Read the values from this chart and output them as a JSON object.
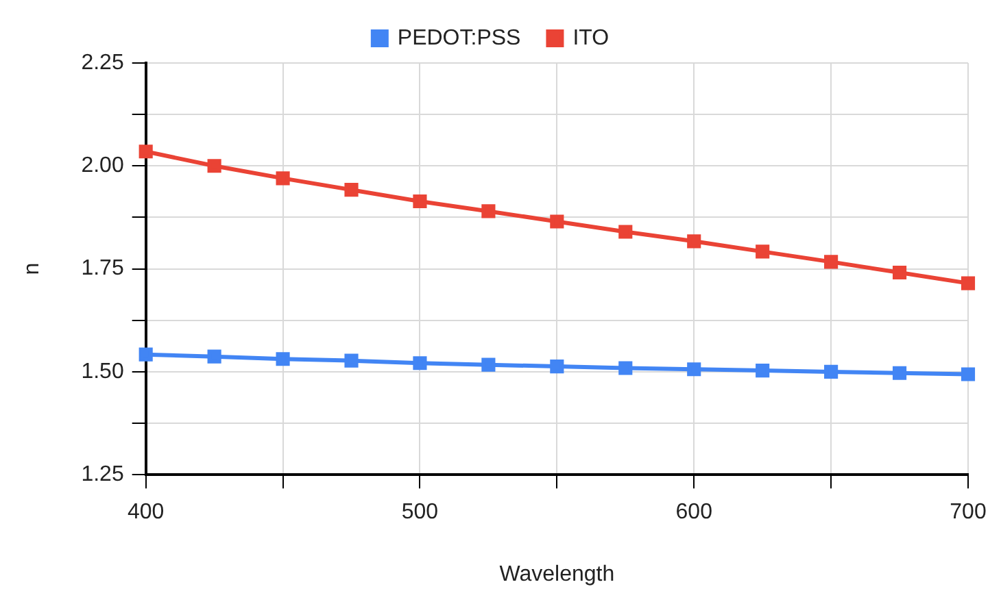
{
  "chart_data": {
    "type": "line",
    "xlabel": "Wavelength",
    "ylabel": "n",
    "x": [
      400,
      425,
      450,
      475,
      500,
      525,
      550,
      575,
      600,
      625,
      650,
      675,
      700
    ],
    "series": [
      {
        "name": "PEDOT:PSS",
        "color": "#4285f4",
        "values": [
          1.542,
          1.537,
          1.531,
          1.527,
          1.521,
          1.517,
          1.513,
          1.509,
          1.506,
          1.503,
          1.5,
          1.497,
          1.494
        ]
      },
      {
        "name": "ITO",
        "color": "#ea4335",
        "values": [
          2.035,
          2.0,
          1.97,
          1.942,
          1.914,
          1.89,
          1.865,
          1.84,
          1.817,
          1.792,
          1.767,
          1.741,
          1.715
        ]
      }
    ],
    "xlim": [
      400,
      700
    ],
    "xticks": [
      400,
      {
        "value": 450,
        "label": null
      },
      500,
      {
        "value": 550,
        "label": null
      },
      600,
      {
        "value": 650,
        "label": null
      },
      700
    ],
    "ylim": [
      1.25,
      2.25
    ],
    "yticks": [
      1.25,
      {
        "value": 1.375,
        "label": null
      },
      "1.50",
      {
        "value": 1.625,
        "label": null
      },
      1.75,
      {
        "value": 1.875,
        "label": null
      },
      "2.00",
      {
        "value": 2.125,
        "label": null
      },
      2.25
    ],
    "grid": true,
    "legend": "top",
    "marker": "square",
    "line_style": "solid"
  }
}
